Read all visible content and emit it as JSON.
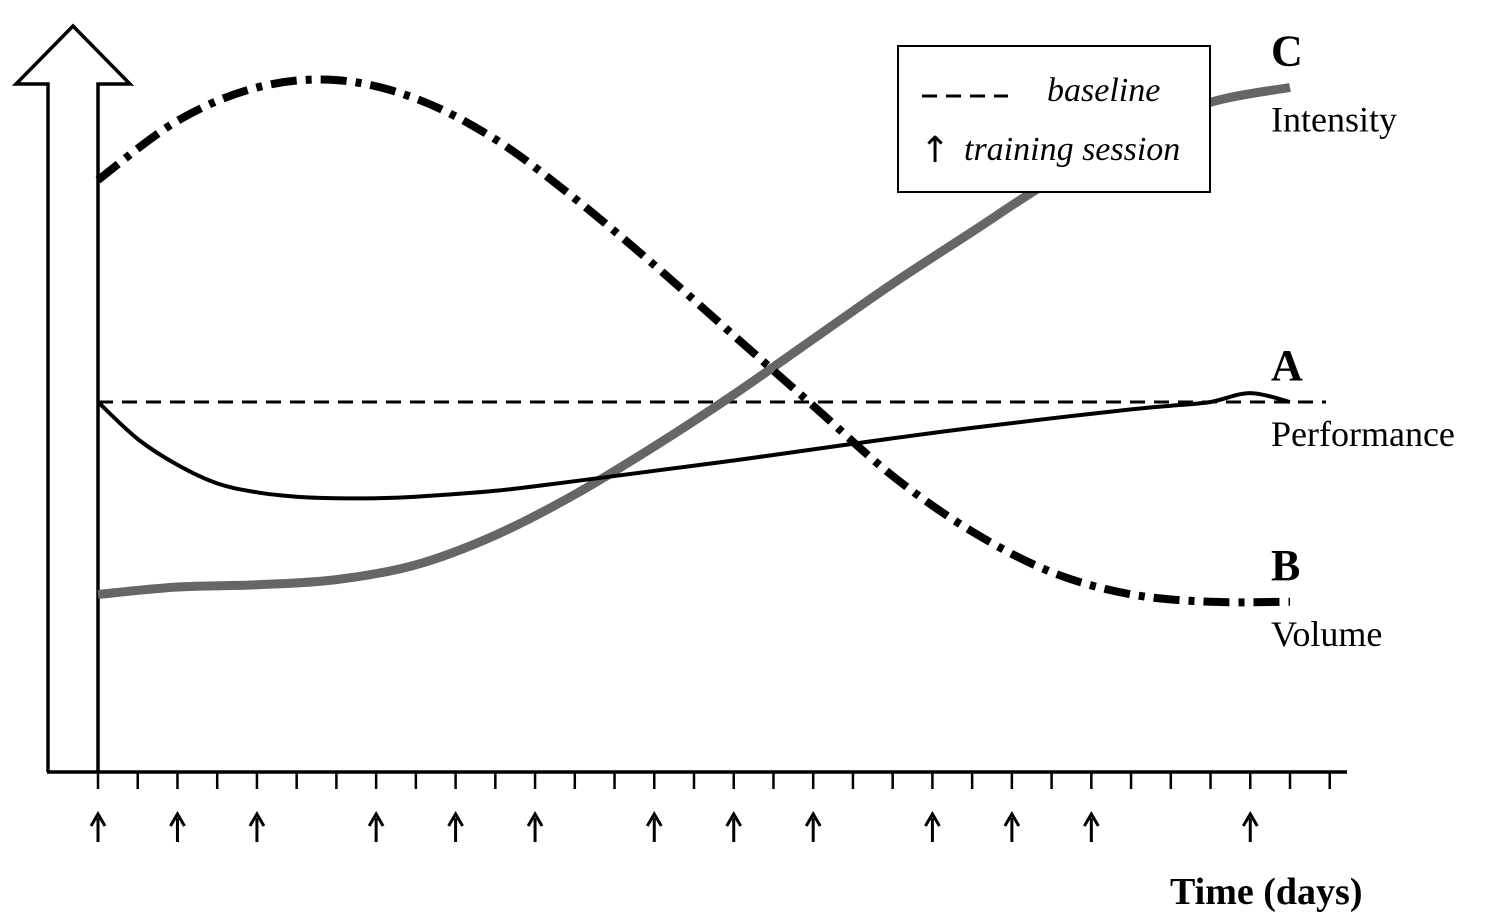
{
  "chart_data": {
    "type": "line",
    "title": "",
    "xlabel": "Time (days)",
    "ylabel": "",
    "x_range": [
      0,
      30
    ],
    "y_range": [
      0,
      100
    ],
    "legend": {
      "placement": "top-right",
      "entries": [
        {
          "label": "baseline",
          "style": "dashed"
        },
        {
          "label": "training session",
          "style": "up-arrow"
        }
      ]
    },
    "baseline_value": 50,
    "series": [
      {
        "id": "A",
        "letter": "A",
        "name": "Performance",
        "color": "#000000",
        "style": "solid",
        "x": [
          0,
          1,
          2,
          3,
          4,
          5,
          6,
          7,
          8,
          10,
          12,
          14,
          16,
          18,
          20,
          22,
          24,
          26,
          27,
          28,
          29,
          30
        ],
        "y": [
          50,
          45,
          41.5,
          39,
          37.8,
          37.2,
          37.0,
          37.0,
          37.2,
          38.0,
          39.3,
          40.7,
          42.1,
          43.6,
          45.1,
          46.5,
          47.8,
          49.0,
          49.5,
          50.0,
          51.2,
          50.0
        ]
      },
      {
        "id": "B",
        "letter": "B",
        "name": "Volume",
        "color": "#000000",
        "style": "dash-dot",
        "x": [
          0,
          2,
          4,
          6,
          8,
          10,
          12,
          14,
          16,
          18,
          20,
          22,
          24,
          26,
          28,
          30
        ],
        "y": [
          80,
          88,
          92.5,
          93.5,
          91,
          85.5,
          77.5,
          68.5,
          59,
          49.5,
          40,
          32.5,
          27,
          24,
          23,
          23
        ]
      },
      {
        "id": "C",
        "letter": "C",
        "name": "Intensity",
        "color": "#666666",
        "style": "solid-thick",
        "x": [
          0,
          2,
          4,
          6,
          8,
          10,
          12,
          14,
          16,
          18,
          20,
          22,
          24,
          26,
          28,
          30
        ],
        "y": [
          24,
          25,
          25.3,
          26,
          28,
          32,
          37.5,
          44,
          51,
          58.5,
          66,
          73,
          80,
          86,
          90.5,
          92.5
        ]
      }
    ],
    "training_sessions": [
      0,
      2,
      4,
      7,
      9,
      11,
      14,
      16,
      18,
      21,
      23,
      25,
      29
    ],
    "ticks_every": 1
  }
}
